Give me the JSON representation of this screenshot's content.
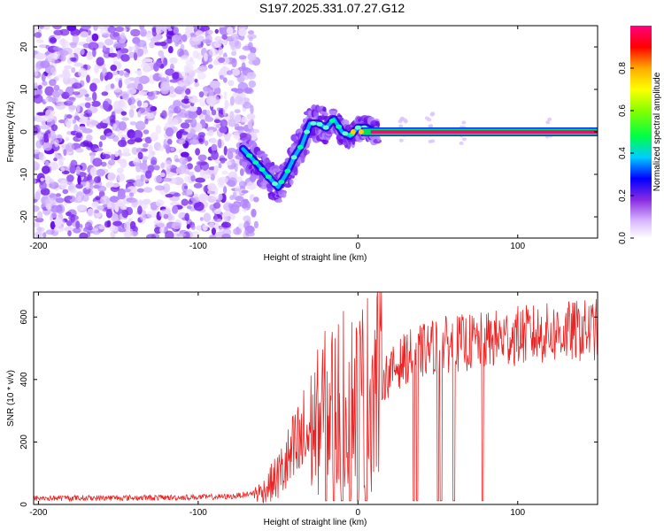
{
  "title": "S197.2025.331.07.27.G12",
  "chart_data": [
    {
      "type": "heatmap",
      "title": "S197.2025.331.07.27.G12",
      "xlabel": "Height of straight line (km)",
      "ylabel": "Frequency (Hz)",
      "xlim": [
        -203,
        150
      ],
      "ylim": [
        -25,
        25
      ],
      "xticks": [
        -200,
        -100,
        0,
        100
      ],
      "yticks": [
        -20,
        -10,
        0,
        10,
        20
      ],
      "colorbar": {
        "label": "Normalized spectral amplitude",
        "range": [
          0,
          1
        ],
        "ticks": [
          "0.0",
          "0.2",
          "0.4",
          "0.6",
          "0.8"
        ]
      },
      "noise_region": [
        -203,
        -68
      ],
      "ridge": {
        "x": [
          -72,
          -62,
          -55,
          -50,
          -45,
          -40,
          -35,
          -30,
          -25,
          -20,
          -15,
          -10,
          -5,
          0,
          5,
          10,
          150
        ],
        "y": [
          -4,
          -8,
          -11,
          -13,
          -10,
          -6,
          -3,
          2,
          2,
          1,
          3,
          0,
          -1,
          1,
          1,
          0,
          0
        ]
      }
    },
    {
      "type": "line",
      "xlabel": "Height of straight line (km)",
      "ylabel": "SNR (10 * v/v)",
      "xlim": [
        -203,
        150
      ],
      "ylim": [
        0,
        680
      ],
      "xticks": [
        -200,
        -100,
        0,
        100
      ],
      "yticks": [
        0,
        200,
        400,
        600
      ],
      "color": "#ee2222",
      "envelope": {
        "x": [
          -203,
          -120,
          -80,
          -60,
          -50,
          -40,
          -30,
          -20,
          -10,
          0,
          10,
          20,
          30,
          40,
          50,
          75,
          100,
          150
        ],
        "y": [
          20,
          22,
          25,
          40,
          90,
          160,
          230,
          300,
          330,
          340,
          380,
          420,
          470,
          490,
          510,
          520,
          540,
          560
        ]
      },
      "dropouts": [
        -20,
        -15,
        -10,
        -5,
        0,
        5,
        35,
        37,
        50,
        52,
        60,
        78
      ]
    }
  ]
}
